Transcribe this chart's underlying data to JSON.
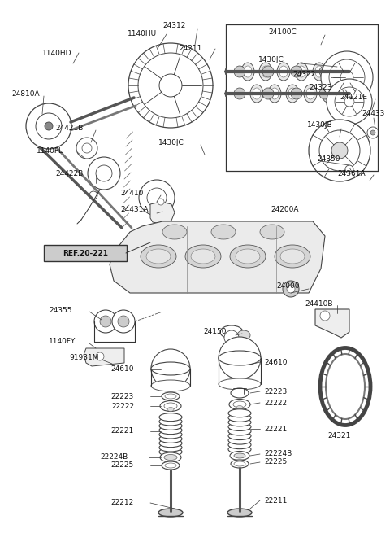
{
  "bg_color": "#ffffff",
  "fig_width": 4.8,
  "fig_height": 6.55,
  "dpi": 100,
  "xlim": [
    0,
    480
  ],
  "ylim": [
    0,
    655
  ]
}
